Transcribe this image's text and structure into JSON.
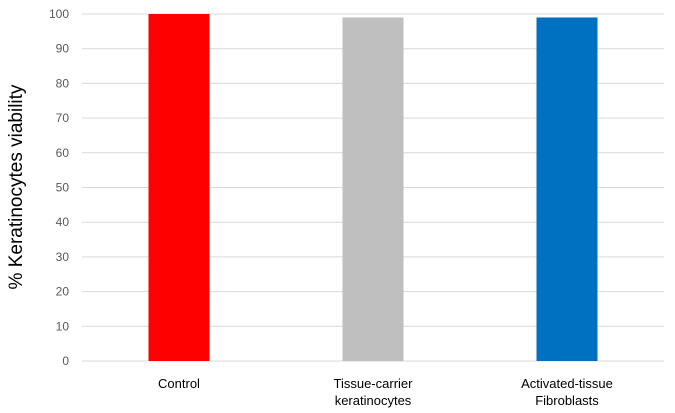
{
  "chart_data": {
    "type": "bar",
    "title": "",
    "xlabel": "",
    "ylabel": "% Keratinocytes viability",
    "ylim": [
      0,
      100
    ],
    "yticks": [
      0,
      10,
      20,
      30,
      40,
      50,
      60,
      70,
      80,
      90,
      100
    ],
    "grid": true,
    "legend": "none",
    "categories": [
      [
        "Control"
      ],
      [
        "Tissue-carrier",
        "keratinocytes"
      ],
      [
        "Activated-tissue",
        "Fibroblasts"
      ]
    ],
    "values": [
      100,
      99,
      99
    ],
    "colors": [
      "#ff0000",
      "#bfbfbf",
      "#0070c0"
    ]
  }
}
